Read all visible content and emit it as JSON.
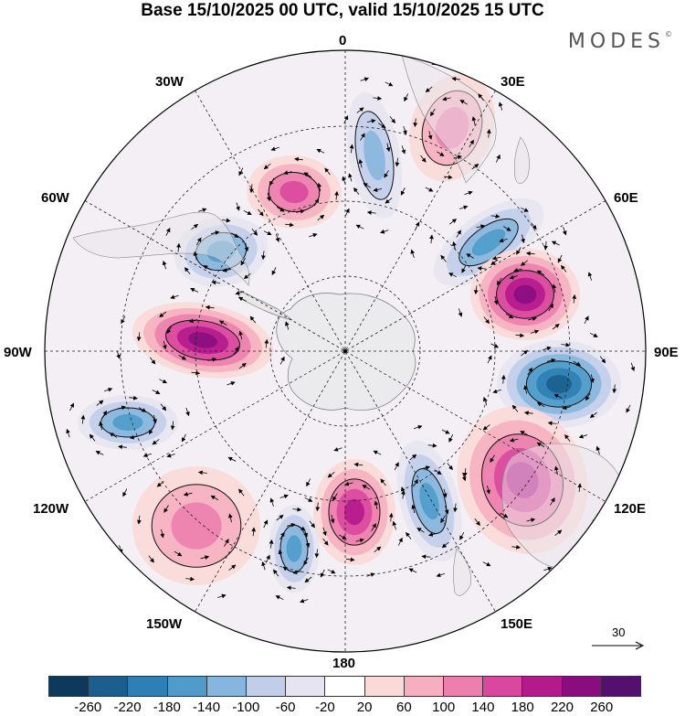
{
  "header": {
    "title": "Base 15/10/2025 00 UTC, valid 15/10/2025 15 UTC",
    "brand": "MODES",
    "brand_mark": "©"
  },
  "map": {
    "projection": "south-polar-stereographic",
    "longitude_labels": {
      "top": "0",
      "bottom": "180",
      "left": "90W",
      "right": "90E",
      "upper_left_1": "30W",
      "upper_left_2": "60W",
      "upper_right_1": "30E",
      "upper_right_2": "60E",
      "lower_left_1": "120W",
      "lower_left_2": "150W",
      "lower_right_1": "120E",
      "lower_right_2": "150E"
    },
    "vector_reference": {
      "value": "30"
    },
    "anomaly_centers": [
      {
        "name": "south-atlantic-low",
        "sign": "negative",
        "strength": -140
      },
      {
        "name": "east-atlantic-high",
        "sign": "positive",
        "strength": 140
      },
      {
        "name": "indian-ocean-low-1",
        "sign": "negative",
        "strength": -180
      },
      {
        "name": "indian-ocean-high-1",
        "sign": "positive",
        "strength": 260
      },
      {
        "name": "indian-ocean-low-2",
        "sign": "negative",
        "strength": -260
      },
      {
        "name": "australian-high",
        "sign": "positive",
        "strength": 220
      },
      {
        "name": "tasman-low",
        "sign": "negative",
        "strength": -180
      },
      {
        "name": "ross-high",
        "sign": "positive",
        "strength": 220
      },
      {
        "name": "pacific-low",
        "sign": "negative",
        "strength": -180
      },
      {
        "name": "south-pacific-high",
        "sign": "positive",
        "strength": 140
      },
      {
        "name": "east-pacific-low",
        "sign": "negative",
        "strength": -180
      },
      {
        "name": "amundsen-high",
        "sign": "positive",
        "strength": 260
      },
      {
        "name": "weddell-low",
        "sign": "negative",
        "strength": -180
      },
      {
        "name": "south-atlantic-high-2",
        "sign": "positive",
        "strength": 180
      }
    ]
  },
  "colorbar": {
    "colors": [
      "#0d3a5c",
      "#1c5f8e",
      "#2e7fb5",
      "#4f9ccb",
      "#86b6de",
      "#c1cde9",
      "#e6e4f1",
      "#ffffff",
      "#fbd9d8",
      "#f6afc0",
      "#ec7fae",
      "#d8489e",
      "#b51a8c",
      "#8a0d80",
      "#54106f"
    ],
    "tick_labels": [
      "-260",
      "-220",
      "-180",
      "-140",
      "-100",
      "-60",
      "-20",
      "20",
      "60",
      "100",
      "140",
      "180",
      "220",
      "260"
    ]
  }
}
